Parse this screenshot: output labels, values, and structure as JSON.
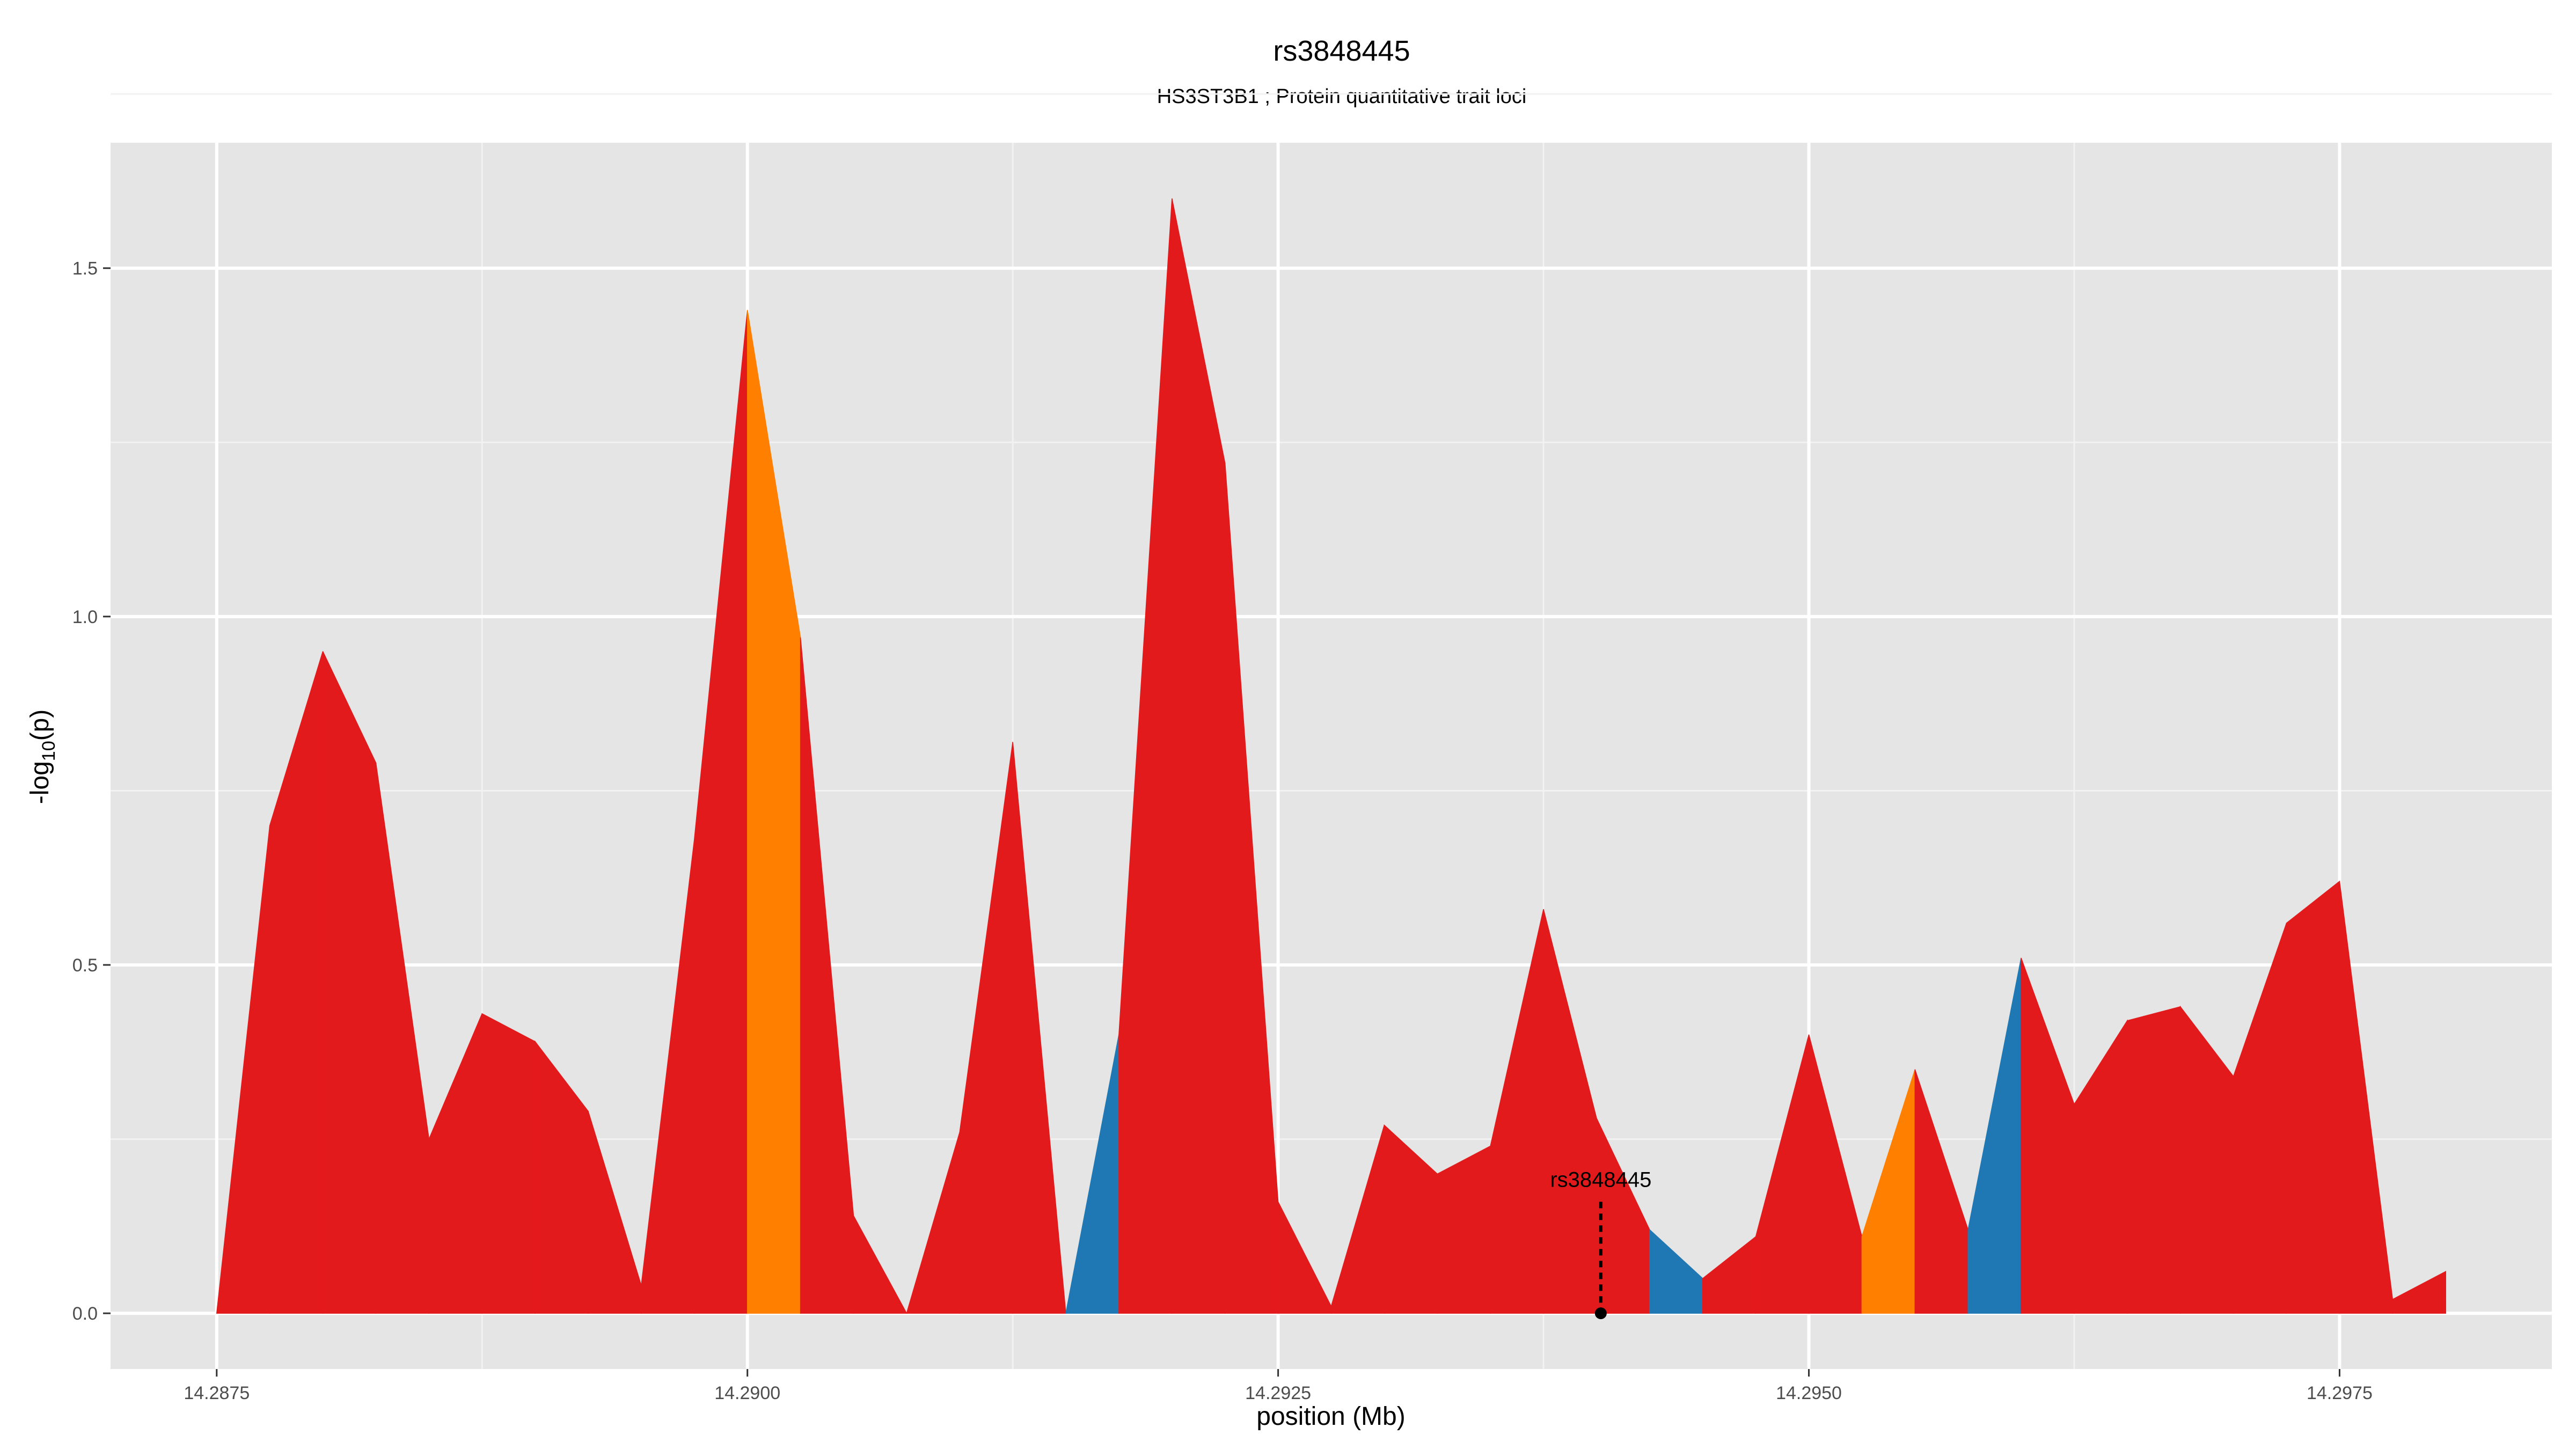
{
  "chart_data": {
    "type": "area",
    "title": "rs3848445",
    "subtitle": "HS3ST3B1 ; Protein quantitative trait loci",
    "xlabel": "position (Mb)",
    "ylabel_main": "-log",
    "ylabel_sub": "10",
    "ylabel_tail": "(p)",
    "xlim": [
      14.287,
      14.2985
    ],
    "ylim": [
      -0.08,
      1.68
    ],
    "x_ticks": [
      14.2875,
      14.29,
      14.2925,
      14.295,
      14.2975
    ],
    "x_tick_labels": [
      "14.2875",
      "14.2900",
      "14.2925",
      "14.2950",
      "14.2975"
    ],
    "y_ticks": [
      0.0,
      0.5,
      1.0,
      1.5
    ],
    "y_tick_labels": [
      "0.0",
      "0.5",
      "1.0",
      "1.5"
    ],
    "grid": true,
    "colors": {
      "panel": "#e5e5e5",
      "grid_major": "#ffffff",
      "red": "#e31a1c",
      "orange": "#ff7f00",
      "blue": "#1f78b4"
    },
    "x": [
      14.2875,
      14.28775,
      14.288,
      14.28825,
      14.2885,
      14.28875,
      14.289,
      14.28925,
      14.2895,
      14.28975,
      14.29,
      14.29025,
      14.2905,
      14.29075,
      14.291,
      14.29125,
      14.2915,
      14.29175,
      14.292,
      14.29225,
      14.2925,
      14.29275,
      14.293,
      14.29325,
      14.2935,
      14.29375,
      14.294,
      14.29425,
      14.2945,
      14.29475,
      14.295,
      14.29525,
      14.2955,
      14.29575,
      14.296,
      14.29625,
      14.2965,
      14.29675,
      14.297,
      14.29725,
      14.2975,
      14.29775,
      14.298
    ],
    "y": [
      0.0,
      0.7,
      0.95,
      0.79,
      0.25,
      0.43,
      0.39,
      0.29,
      0.04,
      0.68,
      1.44,
      0.97,
      0.14,
      0.0,
      0.26,
      0.82,
      0.0,
      0.4,
      1.6,
      1.22,
      0.16,
      0.01,
      0.27,
      0.2,
      0.24,
      0.58,
      0.28,
      0.12,
      0.05,
      0.11,
      0.4,
      0.11,
      0.35,
      0.12,
      0.51,
      0.3,
      0.42,
      0.44,
      0.34,
      0.56,
      0.62,
      0.02,
      0.06
    ],
    "segment_colors": [
      "red",
      "red",
      "red",
      "red",
      "red",
      "red",
      "red",
      "red",
      "red",
      "red",
      "orange",
      "red",
      "red",
      "red",
      "red",
      "red",
      "blue",
      "red",
      "red",
      "red",
      "red",
      "red",
      "red",
      "red",
      "red",
      "red",
      "red",
      "blue",
      "red",
      "red",
      "red",
      "orange",
      "red",
      "blue",
      "red",
      "red",
      "red",
      "red",
      "red",
      "red",
      "red",
      "red"
    ],
    "annotation": {
      "label": "rs3848445",
      "x": 14.29402,
      "y_point": 0.0,
      "y_line_top": 0.16
    }
  }
}
